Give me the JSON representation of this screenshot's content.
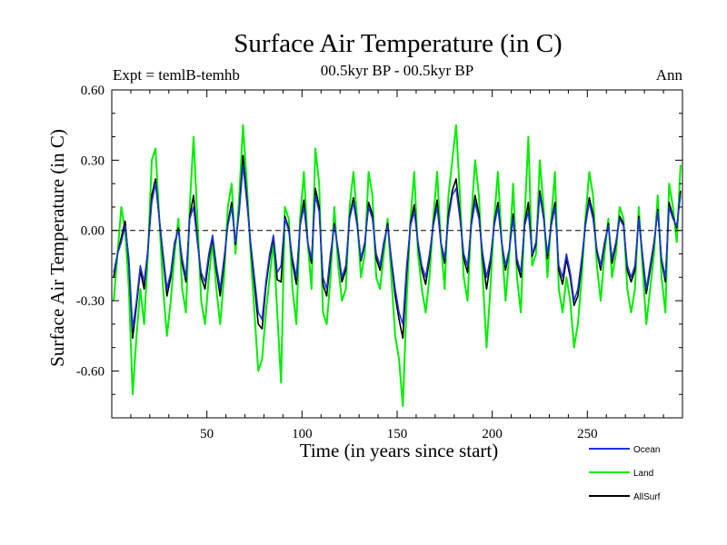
{
  "chart_data": {
    "type": "line",
    "title": "Surface Air Temperature (in C)",
    "subtitle": "00.5kyr BP - 00.5kyr BP",
    "left_note": "Expt = temlB-temhb",
    "right_note": "Ann",
    "xlabel": "Time (in years since start)",
    "ylabel": "Surface Air Temperature (in C)",
    "xlim": [
      0,
      300
    ],
    "ylim": [
      -0.8,
      0.6
    ],
    "x_ticks": [
      50,
      100,
      150,
      200,
      250
    ],
    "x_tick_labels": [
      "50",
      "100",
      "150",
      "200",
      "250"
    ],
    "y_ticks": [
      0.6,
      0.3,
      0.0,
      -0.3,
      -0.6
    ],
    "y_tick_labels": [
      "0.60",
      "0.30",
      "0.00",
      "-0.30",
      "-0.60"
    ],
    "zero_line": true,
    "legend_position": "bottom-right",
    "x": [
      1,
      3,
      5,
      7,
      9,
      11,
      13,
      15,
      17,
      19,
      21,
      23,
      25,
      27,
      29,
      31,
      33,
      35,
      37,
      39,
      41,
      43,
      45,
      47,
      49,
      51,
      53,
      55,
      57,
      59,
      61,
      63,
      65,
      67,
      69,
      71,
      73,
      75,
      77,
      79,
      81,
      83,
      85,
      87,
      89,
      91,
      93,
      95,
      97,
      99,
      101,
      103,
      105,
      107,
      109,
      111,
      113,
      115,
      117,
      119,
      121,
      123,
      125,
      127,
      129,
      131,
      133,
      135,
      137,
      139,
      141,
      143,
      145,
      147,
      149,
      151,
      153,
      155,
      157,
      159,
      161,
      163,
      165,
      167,
      169,
      171,
      173,
      175,
      177,
      179,
      181,
      183,
      185,
      187,
      189,
      191,
      193,
      195,
      197,
      199,
      201,
      203,
      205,
      207,
      209,
      211,
      213,
      215,
      217,
      219,
      221,
      223,
      225,
      227,
      229,
      231,
      233,
      235,
      237,
      239,
      241,
      243,
      245,
      247,
      249,
      251,
      253,
      255,
      257,
      259,
      261,
      263,
      265,
      267,
      269,
      271,
      273,
      275,
      277,
      279,
      281,
      283,
      285,
      287,
      289,
      291,
      293,
      295,
      297,
      299
    ],
    "series": [
      {
        "name": "Ocean",
        "color": "#2233dd",
        "values": [
          -0.18,
          -0.1,
          -0.05,
          0.02,
          -0.12,
          -0.42,
          -0.3,
          -0.15,
          -0.22,
          -0.08,
          0.12,
          0.2,
          0.05,
          -0.1,
          -0.25,
          -0.18,
          -0.05,
          0.0,
          -0.12,
          -0.2,
          0.05,
          0.1,
          -0.05,
          -0.18,
          -0.22,
          -0.1,
          -0.02,
          -0.15,
          -0.25,
          -0.12,
          0.02,
          0.1,
          -0.05,
          0.08,
          0.28,
          0.12,
          -0.05,
          -0.2,
          -0.35,
          -0.38,
          -0.22,
          -0.1,
          -0.02,
          -0.18,
          -0.15,
          0.05,
          0.0,
          -0.12,
          -0.2,
          0.02,
          0.1,
          -0.05,
          -0.12,
          0.15,
          0.08,
          -0.2,
          -0.25,
          -0.1,
          0.02,
          -0.08,
          -0.2,
          -0.15,
          0.05,
          0.12,
          0.02,
          -0.12,
          -0.05,
          0.1,
          0.05,
          -0.1,
          -0.15,
          -0.05,
          0.02,
          -0.12,
          -0.25,
          -0.35,
          -0.4,
          -0.15,
          0.02,
          0.08,
          -0.05,
          -0.15,
          -0.2,
          -0.1,
          0.02,
          0.1,
          -0.05,
          -0.12,
          0.05,
          0.15,
          0.18,
          0.05,
          -0.1,
          -0.15,
          0.02,
          0.12,
          0.05,
          -0.1,
          -0.2,
          -0.12,
          0.02,
          0.1,
          -0.05,
          -0.15,
          -0.08,
          0.05,
          -0.12,
          -0.18,
          0.02,
          0.08,
          -0.1,
          -0.05,
          0.15,
          0.05,
          -0.1,
          0.02,
          0.1,
          -0.15,
          -0.2,
          -0.1,
          -0.18,
          -0.3,
          -0.25,
          -0.12,
          0.02,
          0.12,
          0.05,
          -0.08,
          -0.15,
          -0.05,
          0.02,
          -0.12,
          -0.05,
          0.05,
          0.02,
          -0.15,
          -0.2,
          -0.15,
          0.05,
          -0.1,
          -0.25,
          -0.15,
          -0.05,
          0.08,
          -0.12,
          -0.2,
          0.1,
          0.05,
          0.02,
          0.15
        ]
      },
      {
        "name": "Land",
        "color": "#00ee00",
        "values": [
          -0.3,
          -0.1,
          0.1,
          0.0,
          -0.25,
          -0.7,
          -0.45,
          -0.25,
          -0.4,
          -0.1,
          0.3,
          0.35,
          0.05,
          -0.25,
          -0.45,
          -0.3,
          -0.1,
          0.05,
          -0.25,
          -0.35,
          0.1,
          0.4,
          0.05,
          -0.3,
          -0.4,
          -0.2,
          -0.05,
          -0.25,
          -0.4,
          -0.2,
          0.1,
          0.2,
          -0.1,
          0.15,
          0.45,
          0.2,
          -0.1,
          -0.35,
          -0.6,
          -0.55,
          -0.35,
          -0.2,
          -0.05,
          -0.35,
          -0.65,
          0.1,
          0.05,
          -0.25,
          -0.4,
          0.05,
          0.25,
          -0.05,
          -0.25,
          0.35,
          0.2,
          -0.35,
          -0.4,
          -0.2,
          0.1,
          -0.15,
          -0.3,
          -0.25,
          0.1,
          0.25,
          0.05,
          -0.2,
          -0.1,
          0.25,
          0.15,
          -0.2,
          -0.25,
          -0.1,
          0.05,
          -0.2,
          -0.45,
          -0.55,
          -0.75,
          -0.3,
          0.05,
          0.25,
          -0.1,
          -0.25,
          -0.35,
          -0.2,
          0.05,
          0.25,
          -0.05,
          -0.25,
          0.15,
          0.3,
          0.45,
          0.15,
          -0.2,
          -0.3,
          0.05,
          0.3,
          0.15,
          -0.2,
          -0.5,
          -0.25,
          0.05,
          0.25,
          -0.05,
          -0.3,
          -0.1,
          0.2,
          -0.2,
          -0.35,
          0.05,
          0.4,
          -0.15,
          -0.1,
          0.3,
          0.1,
          -0.2,
          0.05,
          0.25,
          -0.25,
          -0.35,
          -0.2,
          -0.3,
          -0.5,
          -0.4,
          -0.2,
          0.05,
          0.25,
          0.15,
          -0.15,
          -0.3,
          -0.1,
          0.05,
          -0.2,
          -0.1,
          0.1,
          0.05,
          -0.25,
          -0.35,
          -0.25,
          0.1,
          -0.15,
          -0.4,
          -0.25,
          -0.1,
          0.15,
          -0.2,
          -0.35,
          0.2,
          0.1,
          -0.05,
          0.28
        ]
      },
      {
        "name": "AllSurf",
        "color": "#000000",
        "values": [
          -0.2,
          -0.1,
          -0.03,
          0.04,
          -0.14,
          -0.46,
          -0.32,
          -0.17,
          -0.25,
          -0.08,
          0.15,
          0.22,
          0.05,
          -0.12,
          -0.28,
          -0.2,
          -0.06,
          0.01,
          -0.14,
          -0.22,
          0.06,
          0.15,
          -0.04,
          -0.2,
          -0.25,
          -0.12,
          -0.03,
          -0.17,
          -0.28,
          -0.14,
          0.03,
          0.12,
          -0.06,
          0.09,
          0.32,
          0.14,
          -0.06,
          -0.23,
          -0.4,
          -0.42,
          -0.24,
          -0.12,
          -0.03,
          -0.21,
          -0.22,
          0.06,
          0.01,
          -0.14,
          -0.23,
          0.02,
          0.13,
          -0.05,
          -0.14,
          0.18,
          0.1,
          -0.23,
          -0.28,
          -0.12,
          0.03,
          -0.09,
          -0.22,
          -0.17,
          0.06,
          0.14,
          0.03,
          -0.13,
          -0.06,
          0.12,
          0.07,
          -0.12,
          -0.17,
          -0.06,
          0.03,
          -0.13,
          -0.28,
          -0.38,
          -0.46,
          -0.18,
          0.03,
          0.11,
          -0.06,
          -0.17,
          -0.23,
          -0.12,
          0.03,
          0.13,
          -0.05,
          -0.14,
          0.07,
          0.17,
          0.22,
          0.07,
          -0.12,
          -0.18,
          0.03,
          0.15,
          0.07,
          -0.12,
          -0.25,
          -0.14,
          0.03,
          0.12,
          -0.05,
          -0.17,
          -0.08,
          0.07,
          -0.14,
          -0.2,
          0.03,
          0.12,
          -0.11,
          -0.06,
          0.17,
          0.06,
          -0.12,
          0.03,
          0.12,
          -0.17,
          -0.23,
          -0.12,
          -0.2,
          -0.32,
          -0.28,
          -0.14,
          0.03,
          0.14,
          0.07,
          -0.09,
          -0.17,
          -0.06,
          0.03,
          -0.14,
          -0.06,
          0.06,
          0.03,
          -0.17,
          -0.22,
          -0.17,
          0.06,
          -0.11,
          -0.27,
          -0.17,
          -0.06,
          0.09,
          -0.13,
          -0.22,
          0.12,
          0.06,
          0.01,
          0.17
        ]
      }
    ]
  }
}
